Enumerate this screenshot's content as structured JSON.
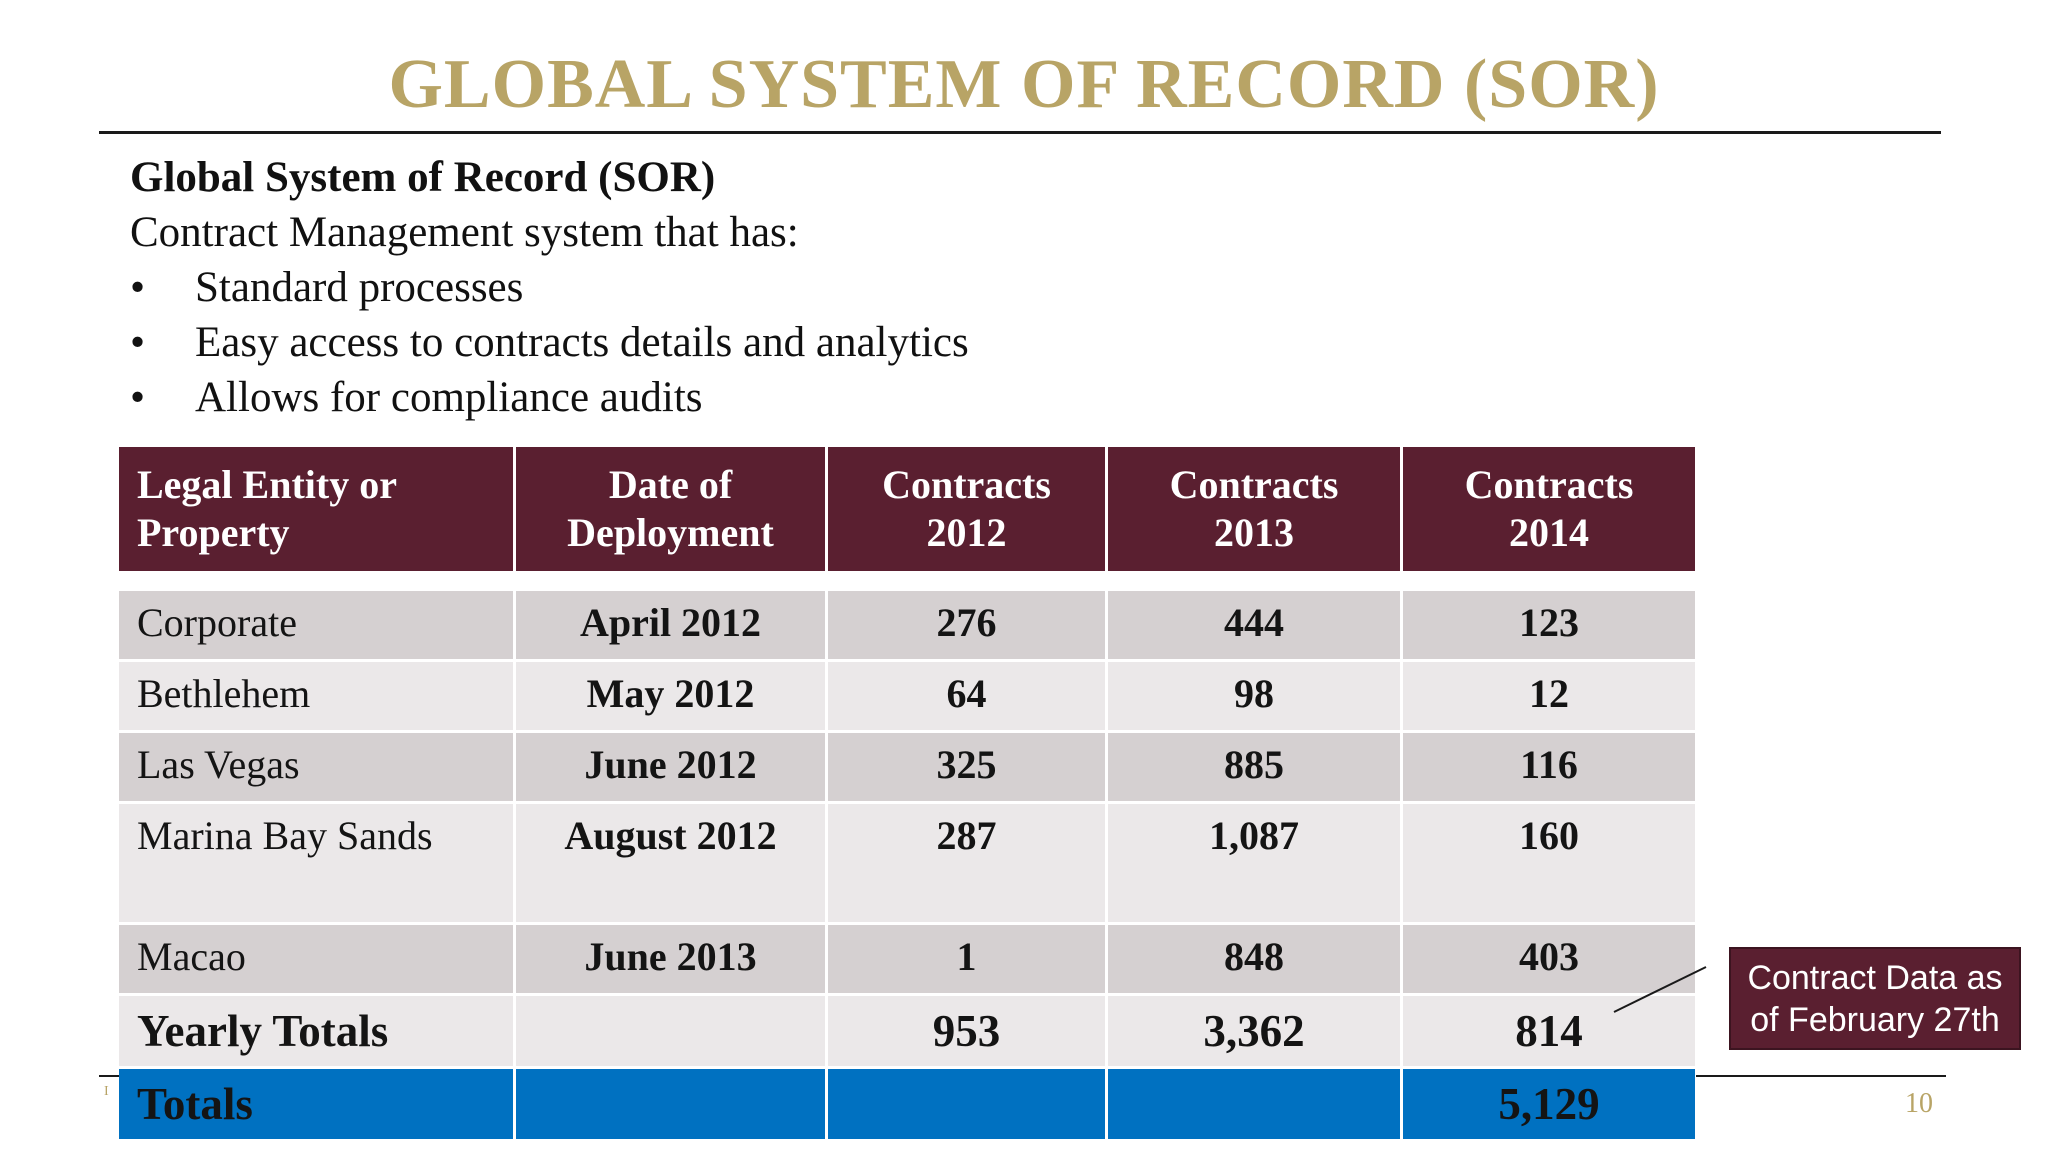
{
  "slide": {
    "title": "GLOBAL SYSTEM OF RECORD (SOR)",
    "page_number": "10",
    "footer_mark": "I"
  },
  "intro": {
    "heading": "Global System of Record (SOR)",
    "subheading": "Contract Management system that has:",
    "bullet_glyph": "•",
    "bullets": [
      "Standard processes",
      "Easy access to contracts details and analytics",
      "Allows for compliance audits"
    ]
  },
  "table": {
    "headers": [
      [
        "Legal Entity or",
        "Property"
      ],
      [
        "Date of",
        "Deployment"
      ],
      [
        "Contracts",
        "2012"
      ],
      [
        "Contracts",
        "2013"
      ],
      [
        "Contracts",
        "2014"
      ]
    ],
    "rows": [
      {
        "entity": "Corporate",
        "date": "April 2012",
        "c2012": "276",
        "c2013": "444",
        "c2014": "123"
      },
      {
        "entity": "Bethlehem",
        "date": "May 2012",
        "c2012": "64",
        "c2013": "98",
        "c2014": "12"
      },
      {
        "entity": "Las Vegas",
        "date": "June 2012",
        "c2012": "325",
        "c2013": "885",
        "c2014": "116"
      },
      {
        "entity": "Marina Bay Sands",
        "date": "August 2012",
        "c2012": "287",
        "c2013": "1,087",
        "c2014": "160"
      },
      {
        "entity": "Macao",
        "date": "June 2013",
        "c2012": "1",
        "c2013": "848",
        "c2014": "403"
      }
    ],
    "yearly_totals": {
      "label": "Yearly Totals",
      "date": "",
      "c2012": "953",
      "c2013": "3,362",
      "c2014": "814"
    },
    "totals": {
      "label": "Totals",
      "date": "",
      "c2012": "",
      "c2013": "",
      "c2014": "5,129"
    }
  },
  "callout": {
    "line1": "Contract Data as",
    "line2": "of February 27th"
  },
  "colors": {
    "title_gold": "#b8a466",
    "header_maroon": "#5a1f30",
    "row_shade_dark": "#d5d0d1",
    "row_shade_light": "#ebe8e9",
    "totals_blue": "#0071c1"
  }
}
